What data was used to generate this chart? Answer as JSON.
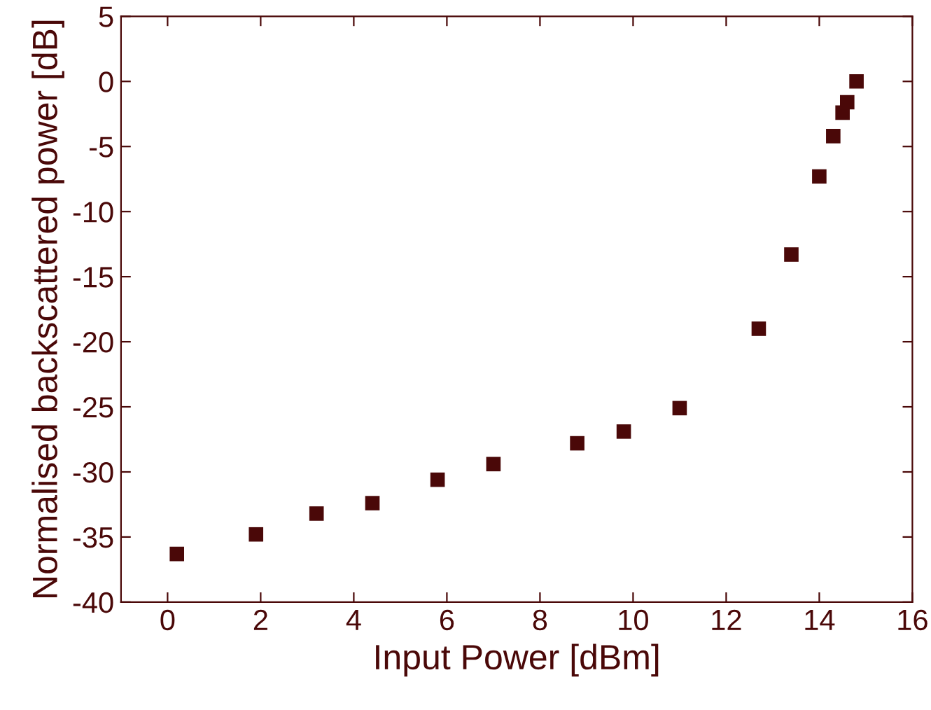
{
  "chart_data": {
    "type": "scatter",
    "xlabel": "Input Power [dBm]",
    "ylabel": "Normalised backscattered power [dB]",
    "x": [
      0.2,
      1.9,
      3.2,
      4.4,
      5.8,
      7.0,
      8.8,
      9.8,
      11.0,
      12.7,
      13.4,
      14.0,
      14.3,
      14.5,
      14.6,
      14.8
    ],
    "values": [
      -36.3,
      -34.8,
      -33.2,
      -32.4,
      -30.6,
      -29.4,
      -27.8,
      -26.9,
      -25.1,
      -19.0,
      -13.3,
      -7.3,
      -4.2,
      -2.4,
      -1.6,
      0.0
    ],
    "color": "#4a0808",
    "marker": "square",
    "grid": false,
    "legend": false,
    "xlim": [
      -1,
      16
    ],
    "xticks": [
      0,
      2,
      4,
      6,
      8,
      10,
      12,
      14,
      16
    ],
    "ylim": [
      -40,
      5
    ],
    "yticks": [
      -40,
      -35,
      -30,
      -25,
      -20,
      -15,
      -10,
      -5,
      0,
      5
    ]
  }
}
